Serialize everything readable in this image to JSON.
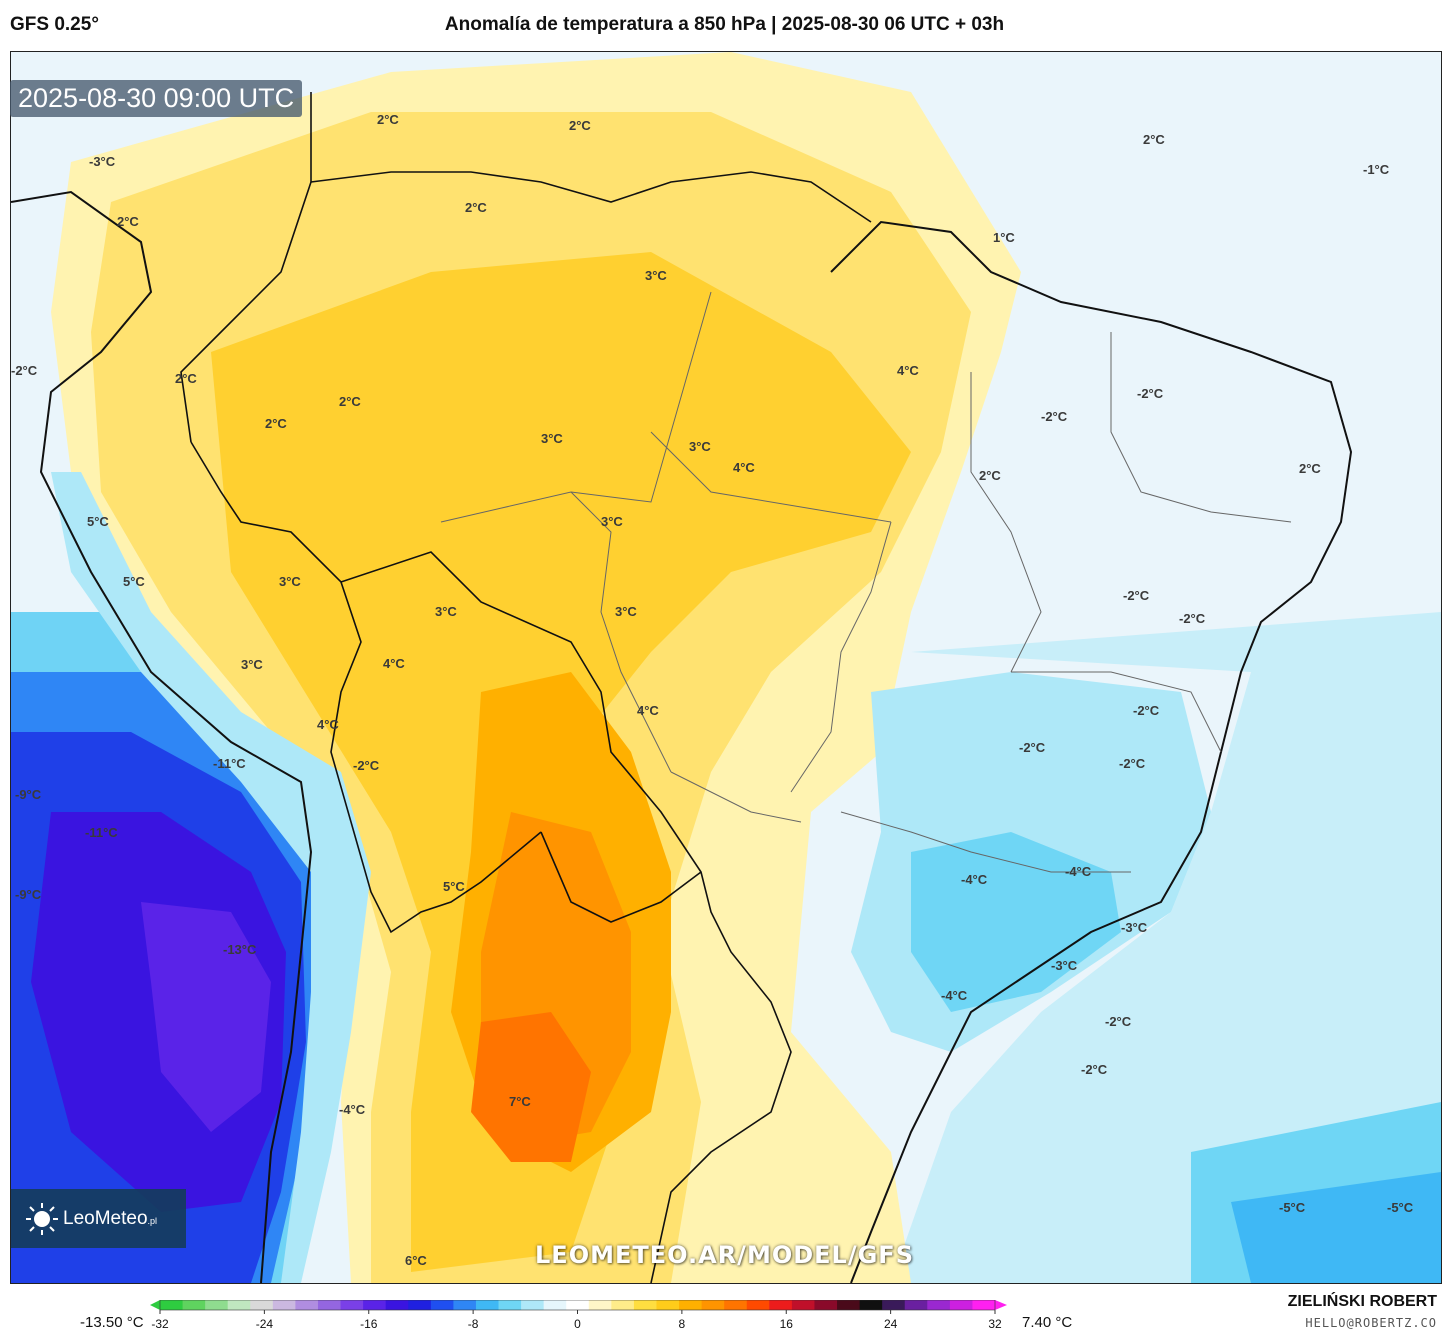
{
  "header": {
    "model": "GFS 0.25°",
    "title": "Anomalía de temperatura a 850 hPa | 2025-08-30 06 UTC + 03h"
  },
  "map": {
    "timestamp": "2025-08-30 09:00 UTC",
    "watermark": "LEOMETEO.AR/MODEL/GFS",
    "logo": {
      "name": "LeoMeteo",
      "suffix": ".pl"
    },
    "labels": [
      "2°C",
      "2°C",
      "2°C",
      "2°C",
      "-1°C",
      "-3°C",
      "2°C",
      "1°C",
      "2°C",
      "2°C",
      "2°C",
      "3°C",
      "4°C",
      "-2°C",
      "-2°C",
      "-2°C",
      "3°C",
      "3°C",
      "4°C",
      "2°C",
      "2°C",
      "5°C",
      "3°C",
      "3°C",
      "3°C",
      "-2°C",
      "-2°C",
      "5°C",
      "3°C",
      "4°C",
      "-2°C",
      "-2°C",
      "3°C",
      "-2°C",
      "4°C",
      "-11°C",
      "-9°C",
      "4°C",
      "-2°C",
      "-11°C",
      "-4°C",
      "-4°C",
      "5°C",
      "-9°C",
      "-3°C",
      "-13°C",
      "-3°C",
      "-4°C",
      "-2°C",
      "7°C",
      "-4°C",
      "-2°C",
      "6°C",
      "-5°C",
      "-5°C"
    ]
  },
  "colorbar": {
    "min_value": "-13.50 °C",
    "max_value": "7.40 °C",
    "ticks": [
      "-32",
      "-24",
      "-16",
      "-8",
      "0",
      "8",
      "16",
      "24",
      "32"
    ],
    "colors": [
      "#2ecc40",
      "#5fd35f",
      "#8fdc8f",
      "#c0e8c0",
      "#d9d9d9",
      "#cbb8e0",
      "#b08de0",
      "#9466e0",
      "#7a40e8",
      "#5a23e8",
      "#3a14e0",
      "#1f20e0",
      "#1f4ff0",
      "#2f86f5",
      "#3fb8f5",
      "#6fd6f5",
      "#aee8f8",
      "#e6f6fc",
      "#ffffff",
      "#fff6c8",
      "#ffec8a",
      "#ffde40",
      "#ffcc1a",
      "#ffb000",
      "#ff9400",
      "#ff7400",
      "#ff4a00",
      "#ec1c1c",
      "#c0102a",
      "#8a0a2a",
      "#4a0a1a",
      "#101010",
      "#3a1a5a",
      "#6a20a0",
      "#9a28d0",
      "#cc20e0",
      "#ff20f0"
    ]
  },
  "footer": {
    "author": "ZIELIŃSKI ROBERT",
    "email": "HELLO@ROBERTZ.CO"
  }
}
